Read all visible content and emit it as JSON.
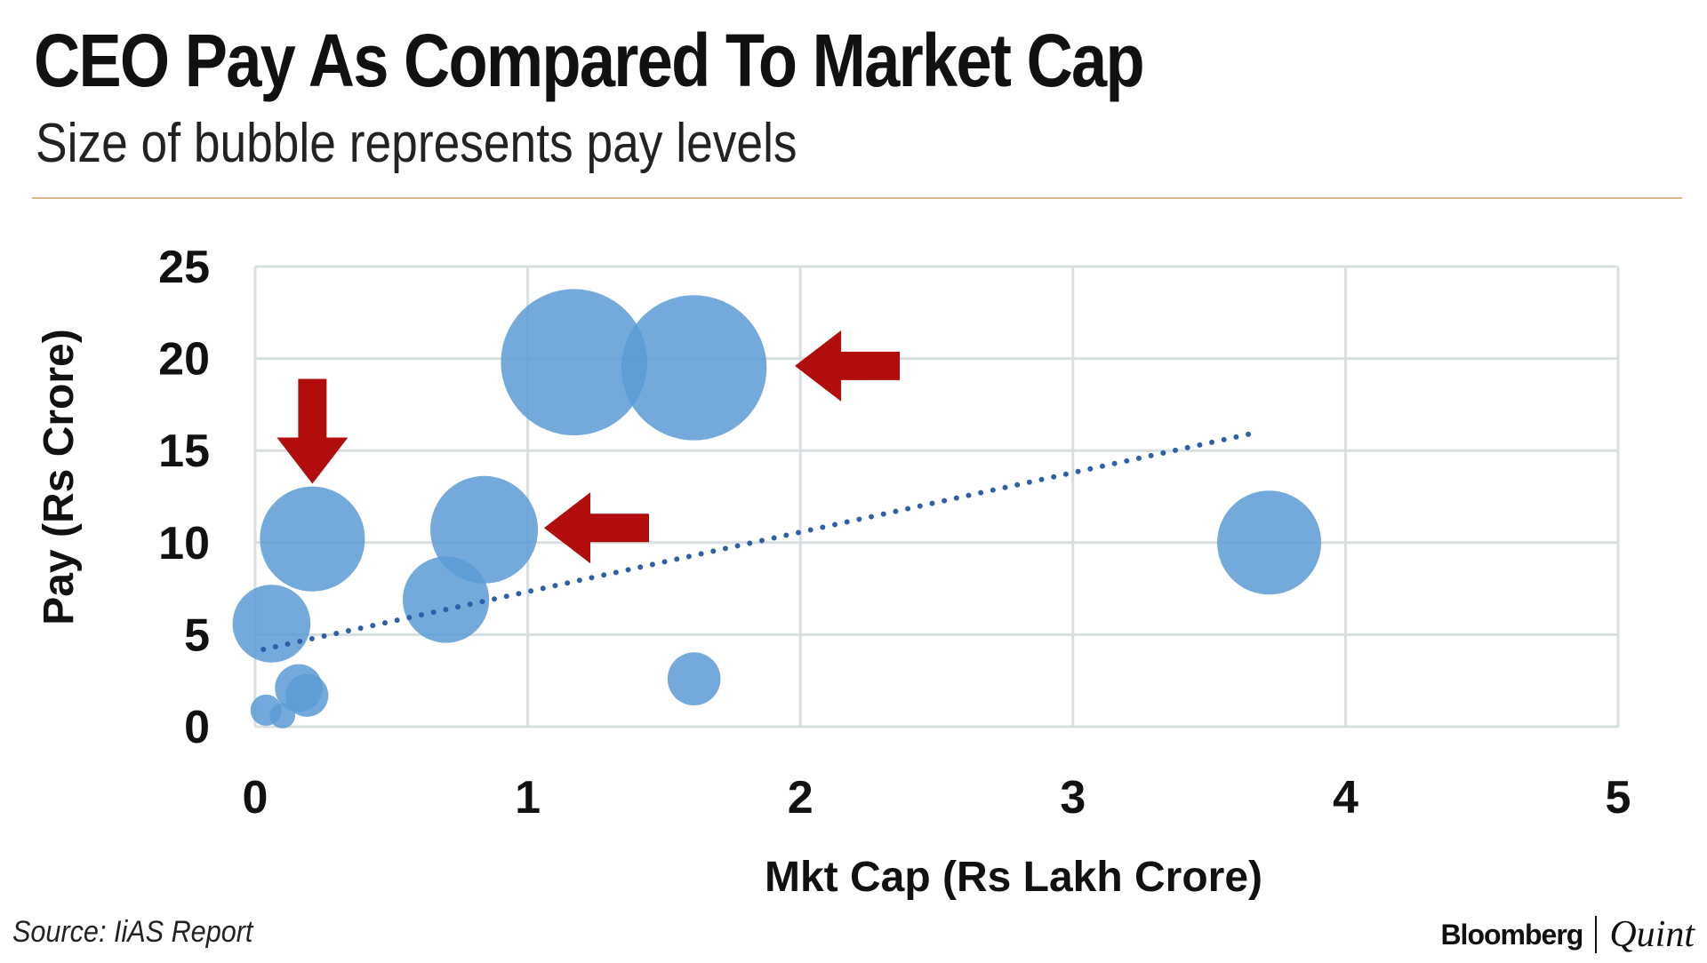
{
  "header": {
    "title": "CEO Pay As Compared To Market Cap",
    "subtitle": "Size of bubble represents pay levels"
  },
  "footer": {
    "source": "Source: IiAS Report",
    "brand_primary": "Bloomberg",
    "brand_secondary": "Quint"
  },
  "colors": {
    "bubble": "#5b9bd5",
    "trendline": "#2e5fa8",
    "arrow": "#b10d0d",
    "grid": "#d7dfe0"
  },
  "chart_data": {
    "type": "bubble",
    "title": "CEO Pay As Compared To Market Cap",
    "subtitle": "Size of bubble represents pay levels",
    "xlabel": "Mkt Cap (Rs Lakh Crore)",
    "ylabel": "Pay (Rs Crore)",
    "xlim": [
      0,
      5
    ],
    "ylim": [
      0,
      25
    ],
    "x_ticks": [
      "0",
      "1",
      "2",
      "3",
      "4",
      "5"
    ],
    "y_ticks": [
      "0",
      "5",
      "10",
      "15",
      "20",
      "25"
    ],
    "grid": true,
    "points": [
      {
        "x": 1.17,
        "y": 19.8,
        "size": 19.8,
        "highlighted": false
      },
      {
        "x": 1.61,
        "y": 19.5,
        "size": 19.5,
        "highlighted": true
      },
      {
        "x": 0.21,
        "y": 10.2,
        "size": 10.2,
        "highlighted": true
      },
      {
        "x": 0.84,
        "y": 10.7,
        "size": 10.7,
        "highlighted": true
      },
      {
        "x": 3.72,
        "y": 10.0,
        "size": 10.0,
        "highlighted": false
      },
      {
        "x": 0.7,
        "y": 6.9,
        "size": 6.9,
        "highlighted": false
      },
      {
        "x": 0.06,
        "y": 5.6,
        "size": 5.6,
        "highlighted": false
      },
      {
        "x": 1.61,
        "y": 2.6,
        "size": 2.6,
        "highlighted": false
      },
      {
        "x": 0.16,
        "y": 2.1,
        "size": 2.1,
        "highlighted": false
      },
      {
        "x": 0.19,
        "y": 1.7,
        "size": 1.7,
        "highlighted": false
      },
      {
        "x": 0.04,
        "y": 0.9,
        "size": 0.9,
        "highlighted": false
      },
      {
        "x": 0.1,
        "y": 0.6,
        "size": 0.6,
        "highlighted": false
      }
    ],
    "trendline": {
      "style": "dotted",
      "x0": 0.03,
      "y0": 4.2,
      "x1": 3.68,
      "y1": 16.0
    },
    "annotations": [
      {
        "type": "arrow",
        "direction": "down",
        "target_x": 0.21,
        "target_y": 13.2
      },
      {
        "type": "arrow",
        "direction": "left",
        "target_x": 1.06,
        "target_y": 10.8
      },
      {
        "type": "arrow",
        "direction": "left",
        "target_x": 1.98,
        "target_y": 19.6
      }
    ]
  }
}
